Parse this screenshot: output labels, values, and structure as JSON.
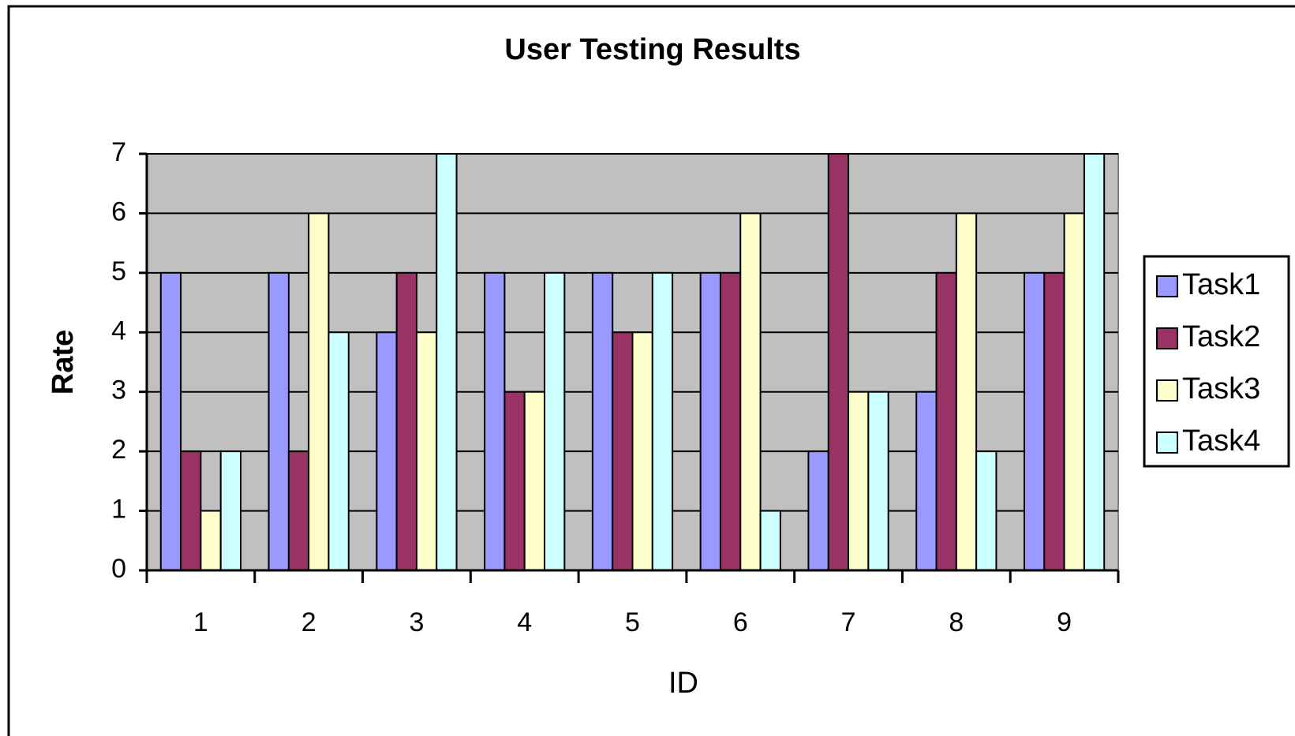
{
  "chart_data": {
    "type": "bar",
    "title": "User Testing Results",
    "x_label": "ID",
    "y_label": "Rate",
    "categories": [
      "1",
      "2",
      "3",
      "4",
      "5",
      "6",
      "7",
      "8",
      "9"
    ],
    "series": [
      {
        "name": "Task1",
        "color": "#9999ff",
        "values": [
          5,
          5,
          4,
          5,
          5,
          5,
          2,
          3,
          5
        ]
      },
      {
        "name": "Task2",
        "color": "#993366",
        "values": [
          2,
          2,
          5,
          3,
          4,
          5,
          7,
          5,
          5
        ]
      },
      {
        "name": "Task3",
        "color": "#ffffcc",
        "values": [
          1,
          6,
          4,
          3,
          4,
          6,
          3,
          6,
          6
        ]
      },
      {
        "name": "Task4",
        "color": "#ccffff",
        "values": [
          2,
          4,
          7,
          5,
          5,
          1,
          3,
          2,
          7
        ]
      }
    ],
    "ylim": [
      0,
      7
    ],
    "yticks": [
      0,
      1,
      2,
      3,
      4,
      5,
      6,
      7
    ],
    "grid": true,
    "legend": "right",
    "plot_background": "#c0c0c0"
  }
}
